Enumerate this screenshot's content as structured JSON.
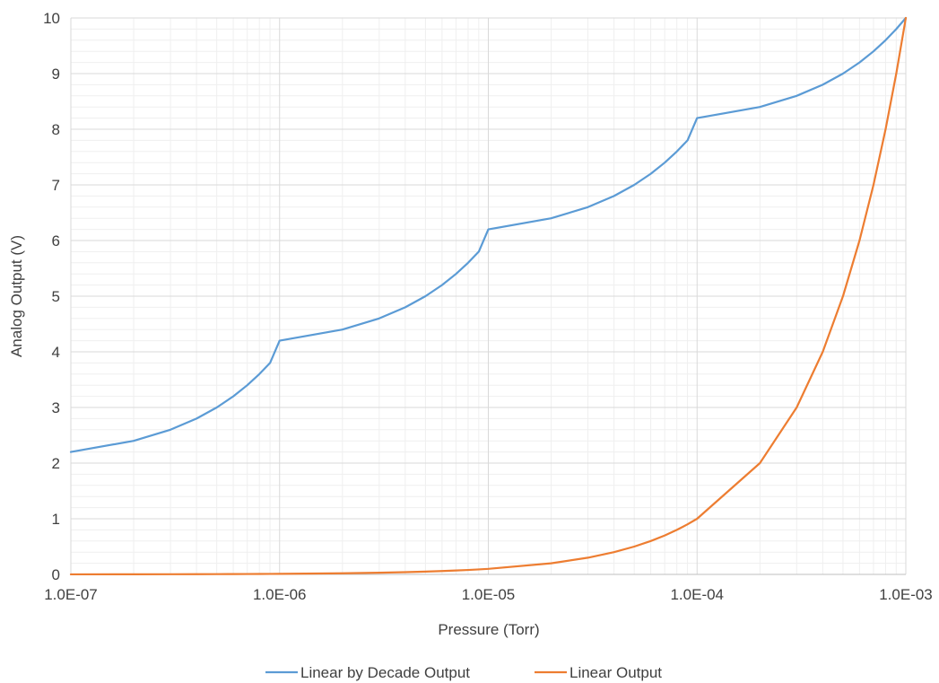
{
  "chart_data": {
    "type": "line",
    "title": "",
    "xlabel": "Pressure (Torr)",
    "ylabel": "Analog Output (V)",
    "x_scale": "log",
    "xlim": [
      1e-07,
      0.001
    ],
    "ylim": [
      0,
      10
    ],
    "grid": "major and minor",
    "legend_position": "bottom",
    "x_ticks": [
      1e-07,
      1e-06,
      1e-05,
      0.0001,
      0.001
    ],
    "x_tick_labels": [
      "1.0E-07",
      "1.0E-06",
      "1.0E-05",
      "1.0E-04",
      "1.0E-03"
    ],
    "y_ticks": [
      0,
      1,
      2,
      3,
      4,
      5,
      6,
      7,
      8,
      9,
      10
    ],
    "y_tick_labels": [
      "0",
      "1",
      "2",
      "3",
      "4",
      "5",
      "6",
      "7",
      "8",
      "9",
      "10"
    ],
    "x": [
      1e-07,
      2e-07,
      3e-07,
      4e-07,
      5e-07,
      6e-07,
      7e-07,
      8e-07,
      9e-07,
      1e-06,
      2e-06,
      3e-06,
      4e-06,
      5e-06,
      6e-06,
      7e-06,
      8e-06,
      9e-06,
      1e-05,
      2e-05,
      3e-05,
      4e-05,
      5e-05,
      6e-05,
      7e-05,
      8e-05,
      9e-05,
      0.0001,
      0.0002,
      0.0003,
      0.0004,
      0.0005,
      0.0006,
      0.0007,
      0.0008,
      0.0009,
      0.001
    ],
    "series": [
      {
        "name": "Linear by Decade Output",
        "color": "#5b9bd5",
        "values": [
          2.2,
          2.4,
          2.6,
          2.8,
          3.0,
          3.2,
          3.4,
          3.6,
          3.8,
          4.2,
          4.4,
          4.6,
          4.8,
          5.0,
          5.2,
          5.4,
          5.6,
          5.8,
          6.2,
          6.4,
          6.6,
          6.8,
          7.0,
          7.2,
          7.4,
          7.6,
          7.8,
          8.2,
          8.4,
          8.6,
          8.8,
          9.0,
          9.2,
          9.4,
          9.6,
          9.8,
          10.0
        ]
      },
      {
        "name": "Linear Output",
        "color": "#ed7d31",
        "values": [
          0.001,
          0.002,
          0.003,
          0.004,
          0.005,
          0.006,
          0.007,
          0.008,
          0.009,
          0.01,
          0.02,
          0.03,
          0.04,
          0.05,
          0.06,
          0.07,
          0.08,
          0.09,
          0.1,
          0.2,
          0.3,
          0.4,
          0.5,
          0.6,
          0.7,
          0.8,
          0.9,
          1.0,
          2.0,
          3.0,
          4.0,
          5.0,
          6.0,
          7.0,
          8.0,
          9.0,
          10.0
        ]
      }
    ]
  }
}
